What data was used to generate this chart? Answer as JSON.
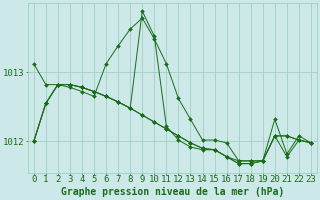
{
  "background_color": "#cce8e8",
  "grid_color": "#99ccbb",
  "line_color": "#1a6b1a",
  "marker_color": "#1a6b1a",
  "title": "Graphe pression niveau de la mer (hPa)",
  "xlabel_fontsize": 6.5,
  "ylabel_fontsize": 6.5,
  "title_fontsize": 7,
  "xlim": [
    -0.5,
    23.5
  ],
  "ylim": [
    1011.55,
    1014.0
  ],
  "yticks": [
    1012,
    1013
  ],
  "xticks": [
    0,
    1,
    2,
    3,
    4,
    5,
    6,
    7,
    8,
    9,
    10,
    11,
    12,
    13,
    14,
    15,
    16,
    17,
    18,
    19,
    20,
    21,
    22,
    23
  ],
  "series": [
    [
      1012.0,
      1012.55,
      1012.82,
      1012.82,
      1012.78,
      1012.72,
      1012.65,
      1012.57,
      1012.48,
      1012.38,
      1012.28,
      1012.18,
      1012.08,
      1011.98,
      1011.9,
      1011.88,
      1011.78,
      1011.72,
      1011.72,
      1011.72,
      1012.08,
      1012.08,
      1012.02,
      1011.98
    ],
    [
      1013.12,
      1012.82,
      1012.82,
      1012.78,
      1012.72,
      1012.65,
      1013.12,
      1013.38,
      1013.62,
      1013.78,
      1013.48,
      1013.12,
      1012.62,
      1012.32,
      1012.02,
      1012.02,
      1011.98,
      1011.72,
      1011.72,
      1011.72,
      1012.32,
      1011.82,
      1012.08,
      1011.98
    ],
    [
      1012.0,
      1012.55,
      1012.82,
      1012.82,
      1012.78,
      1012.72,
      1012.65,
      1012.57,
      1012.48,
      1013.88,
      1013.52,
      1012.22,
      1012.02,
      1011.92,
      1011.88,
      1011.88,
      1011.78,
      1011.68,
      1011.68,
      1011.72,
      1012.08,
      1012.08,
      1012.02,
      1011.98
    ],
    [
      1012.0,
      1012.55,
      1012.82,
      1012.82,
      1012.78,
      1012.72,
      1012.65,
      1012.57,
      1012.48,
      1012.38,
      1012.28,
      1012.18,
      1012.08,
      1011.98,
      1011.9,
      1011.88,
      1011.78,
      1011.68,
      1011.68,
      1011.72,
      1012.08,
      1011.78,
      1012.02,
      1011.98
    ]
  ]
}
